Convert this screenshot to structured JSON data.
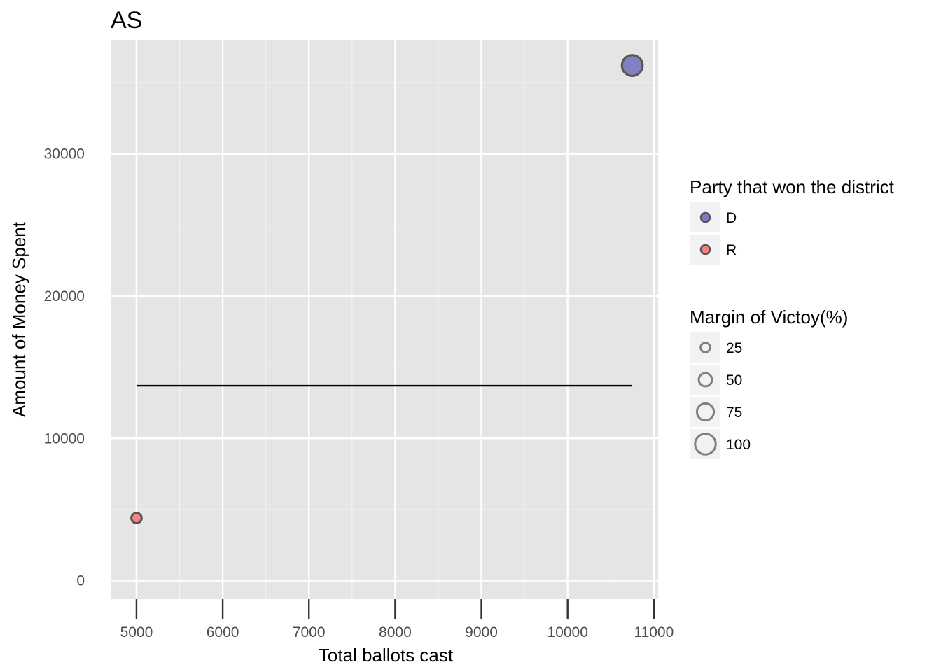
{
  "chart_data": {
    "type": "scatter",
    "title": "AS",
    "xlabel": "Total ballots cast",
    "ylabel": "Amount of Money Spent",
    "xlim": [
      4700,
      11050
    ],
    "ylim": [
      -1300,
      38000
    ],
    "x_ticks": [
      5000,
      6000,
      7000,
      8000,
      9000,
      10000,
      11000
    ],
    "x_tick_labels": [
      "5000",
      "6000",
      "7000",
      "8000",
      "9000",
      "10000",
      "11000"
    ],
    "y_ticks": [
      0,
      10000,
      20000,
      30000
    ],
    "y_tick_labels": [
      "0",
      "10000",
      "20000",
      "30000"
    ],
    "grid": true,
    "background": "#e5e5e5",
    "points": [
      {
        "x": 10750,
        "y": 36200,
        "party": "D",
        "margin": 90
      },
      {
        "x": 5000,
        "y": 4400,
        "party": "R",
        "margin": 25
      }
    ],
    "reference_line": {
      "x": [
        5000,
        10750
      ],
      "y": [
        13700,
        13700
      ],
      "color": "#000000"
    },
    "legend_position": "right",
    "color_legend": {
      "title": "Party that won the district",
      "entries": [
        {
          "label": "D",
          "color": "#7b7bbf"
        },
        {
          "label": "R",
          "color": "#f08080"
        }
      ]
    },
    "size_legend": {
      "title": "Margin of Victoy(%)",
      "entries": [
        {
          "label": "25",
          "value": 25
        },
        {
          "label": "50",
          "value": 50
        },
        {
          "label": "75",
          "value": 75
        },
        {
          "label": "100",
          "value": 100
        }
      ]
    }
  }
}
